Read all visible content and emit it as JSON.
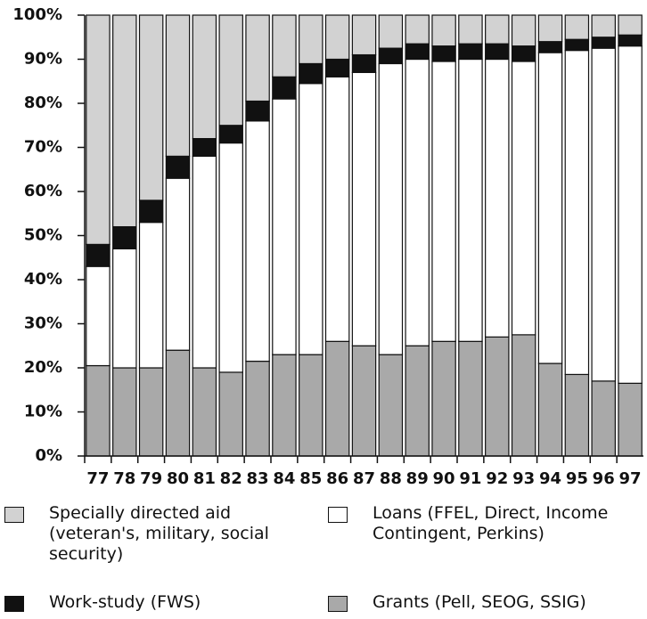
{
  "chart_data": {
    "type": "stacked_bar",
    "categories": [
      "77",
      "78",
      "79",
      "80",
      "81",
      "82",
      "83",
      "84",
      "85",
      "86",
      "87",
      "88",
      "89",
      "90",
      "91",
      "92",
      "93",
      "94",
      "95",
      "96",
      "97"
    ],
    "series": [
      {
        "name": "Grants (Pell, SEOG, SSIG)",
        "color": "#a9a9a9",
        "values": [
          20.5,
          20,
          20,
          24,
          20,
          19,
          21.5,
          23,
          23,
          26,
          25,
          23,
          25,
          26,
          26,
          27,
          27.5,
          21,
          18.5,
          17,
          16.5
        ]
      },
      {
        "name": "Loans (FFEL, Direct, Income Contingent, Perkins)",
        "color": "#ffffff",
        "values": [
          22.5,
          27,
          33,
          39,
          48,
          52,
          54.5,
          58,
          61.5,
          60,
          62,
          66,
          65,
          63.5,
          64,
          63,
          62,
          70.5,
          73.5,
          75.5,
          76.5
        ]
      },
      {
        "name": "Work-study (FWS)",
        "color": "#111111",
        "values": [
          5,
          5,
          5,
          5,
          4,
          4,
          4.5,
          5,
          4.5,
          4,
          4,
          3.5,
          3.5,
          3.5,
          3.5,
          3.5,
          3.5,
          2.5,
          2.5,
          2.5,
          2.5
        ]
      },
      {
        "name": "Specially directed aid (veteran's, military, social security)",
        "color": "#d2d2d2",
        "values": [
          52,
          48,
          42,
          32,
          28,
          25,
          19.5,
          14,
          11,
          10,
          9,
          7.5,
          6.5,
          7,
          6.5,
          6.5,
          7,
          6,
          5.5,
          5,
          4.5
        ]
      }
    ],
    "ylim": [
      0,
      100
    ],
    "yticks": [
      {
        "value": 0,
        "label": "0%"
      },
      {
        "value": 10,
        "label": "10%"
      },
      {
        "value": 20,
        "label": "20%"
      },
      {
        "value": 30,
        "label": "30%"
      },
      {
        "value": 40,
        "label": "40%"
      },
      {
        "value": 50,
        "label": "50%"
      },
      {
        "value": 60,
        "label": "60%"
      },
      {
        "value": 70,
        "label": "70%"
      },
      {
        "value": 80,
        "label": "80%"
      },
      {
        "value": 90,
        "label": "90%"
      },
      {
        "value": 100,
        "label": "100%"
      }
    ],
    "grid": false
  }
}
